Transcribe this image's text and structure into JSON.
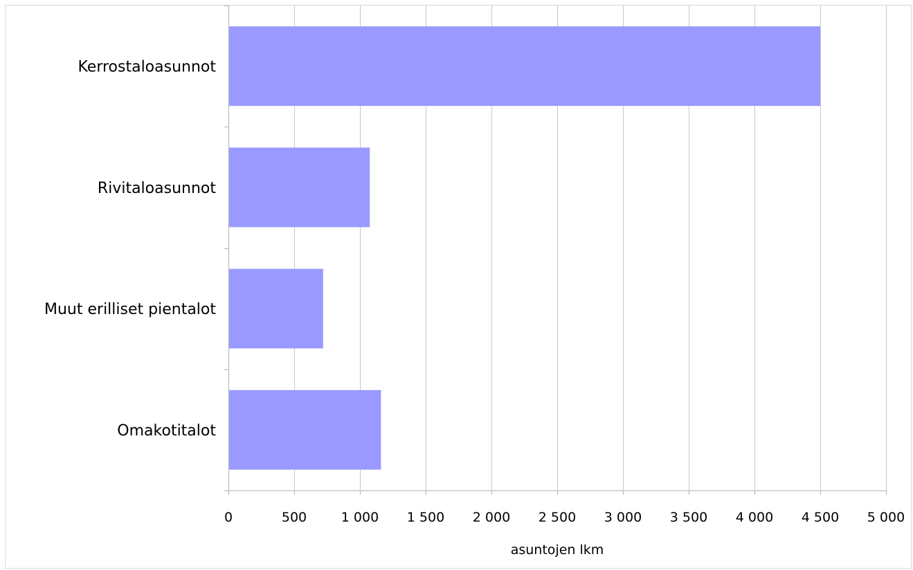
{
  "chart_data": {
    "type": "bar",
    "orientation": "horizontal",
    "categories": [
      "Kerrostaloasunnot",
      "Rivitaloasunnot",
      "Muut erilliset pientalot",
      "Omakotitalot"
    ],
    "series": [
      {
        "values": [
          4500,
          1075,
          720,
          1160
        ]
      }
    ],
    "xlabel": "asuntojen lkm",
    "ylabel": "",
    "title": "",
    "xlim": [
      0,
      5000
    ],
    "x_ticks": [
      0,
      500,
      1000,
      1500,
      2000,
      2500,
      3000,
      3500,
      4000,
      4500,
      5000
    ],
    "x_tick_labels": [
      "0",
      "500",
      "1 000",
      "1 500",
      "2 000",
      "2 500",
      "3 000",
      "3 500",
      "4 000",
      "4 500",
      "5 000"
    ],
    "grid": "vertical",
    "legend": "none",
    "colors": {
      "bar": "#9999ff",
      "grid": "#c8c8c8",
      "axis": "#b3b3b3"
    }
  }
}
